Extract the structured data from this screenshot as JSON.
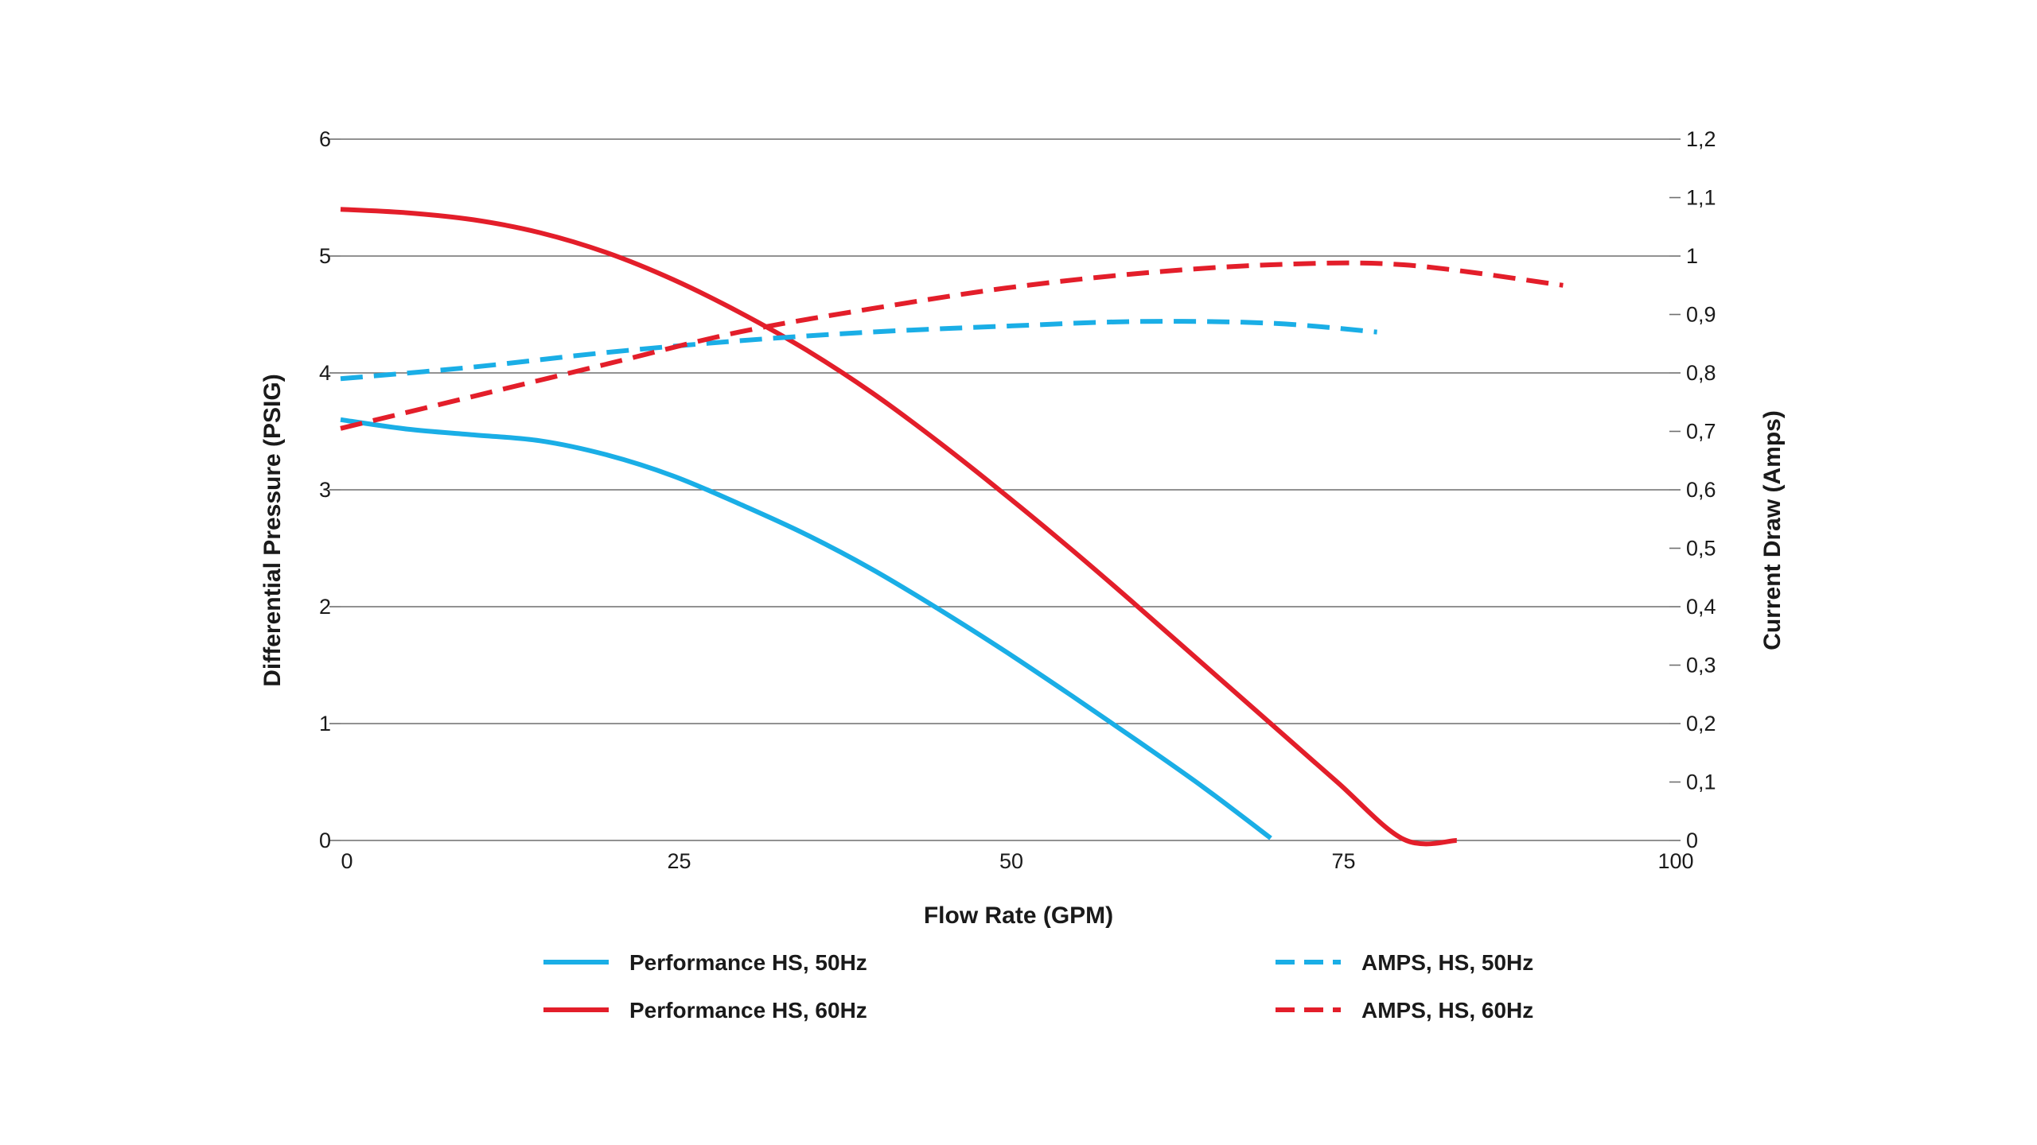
{
  "chart_data": {
    "type": "line",
    "xlabel": "Flow Rate (GPM)",
    "ylabel_left": "Differential Pressure (PSIG)",
    "ylabel_right": "Current Draw (Amps)",
    "xlim": [
      0,
      100
    ],
    "ylim_left": [
      0,
      6
    ],
    "ylim_right": [
      0,
      1.2
    ],
    "x_ticks": [
      "0",
      "25",
      "50",
      "75",
      "100"
    ],
    "y_left_ticks": [
      "0",
      "1",
      "2",
      "3",
      "4",
      "5",
      "6"
    ],
    "y_right_ticks": [
      "0",
      "0,1",
      "0,2",
      "0,3",
      "0,4",
      "0,5",
      "0,6",
      "0,7",
      "0,8",
      "0,9",
      "1",
      "1,1",
      "1,2"
    ],
    "grid": "horizontal",
    "legend_position": "bottom",
    "series": [
      {
        "name": "Performance HS, 50Hz",
        "axis": "left",
        "style": "solid",
        "color": "#1aaee6",
        "x": [
          0,
          5,
          10,
          15,
          20,
          25,
          30,
          35,
          40,
          45,
          50,
          55,
          60,
          65,
          70
        ],
        "y": [
          3.6,
          3.52,
          3.47,
          3.42,
          3.3,
          3.12,
          2.88,
          2.62,
          2.32,
          1.98,
          1.62,
          1.24,
          0.85,
          0.45,
          0.02
        ]
      },
      {
        "name": "Performance HS, 60Hz",
        "axis": "left",
        "style": "solid",
        "color": "#e31e2a",
        "x": [
          0,
          5,
          10,
          15,
          20,
          25,
          30,
          35,
          40,
          45,
          50,
          55,
          60,
          65,
          70,
          75,
          80,
          84
        ],
        "y": [
          5.4,
          5.37,
          5.31,
          5.2,
          5.03,
          4.8,
          4.52,
          4.2,
          3.83,
          3.41,
          2.96,
          2.49,
          2.0,
          1.5,
          1.0,
          0.5,
          0.01,
          0.0
        ]
      },
      {
        "name": "AMPS, HS, 50Hz",
        "axis": "right",
        "style": "dashed",
        "color": "#1aaee6",
        "x": [
          0,
          10,
          20,
          30,
          40,
          50,
          60,
          70,
          78
        ],
        "y": [
          0.79,
          0.81,
          0.835,
          0.855,
          0.87,
          0.88,
          0.888,
          0.885,
          0.87
        ]
      },
      {
        "name": "AMPS, HS, 60Hz",
        "axis": "right",
        "style": "dashed",
        "color": "#e31e2a",
        "x": [
          0,
          10,
          20,
          30,
          40,
          50,
          60,
          70,
          80,
          92
        ],
        "y": [
          0.705,
          0.76,
          0.815,
          0.87,
          0.91,
          0.945,
          0.97,
          0.985,
          0.985,
          0.95
        ]
      }
    ]
  }
}
